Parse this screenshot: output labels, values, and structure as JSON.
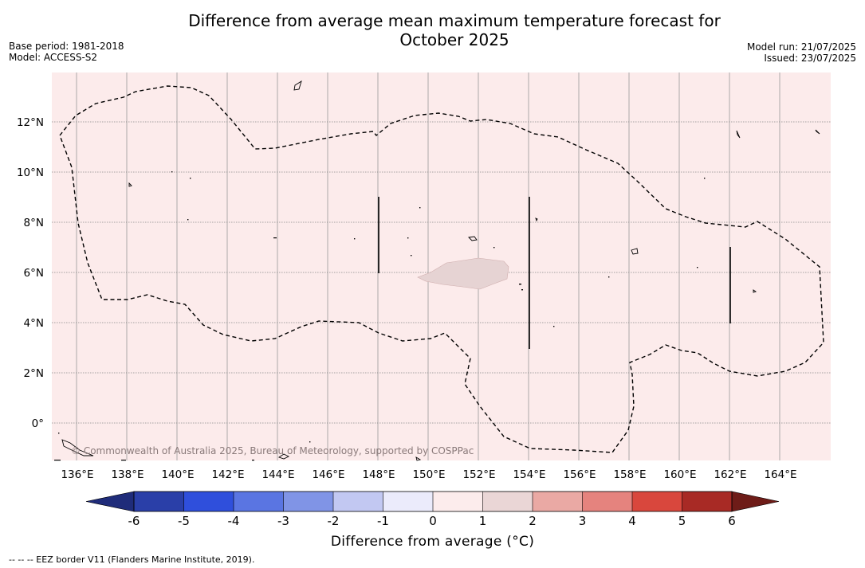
{
  "title_line1": "Difference from average mean maximum temperature forecast for",
  "title_line2": "October 2025",
  "base_period": "Base period: 1981-2018",
  "model": "Model: ACCESS-S2",
  "model_run": "Model run: 21/07/2025",
  "issued": "Issued: 23/07/2025",
  "copyright": "© Commonwealth of Australia 2025, Bureau of Meteorology, supported by COSPPac",
  "footnote": "--  --  -- EEZ border V11 (Flanders Marine Institute, 2019).",
  "colorbar": {
    "title": "Difference from average (°C)",
    "labels": [
      "-6",
      "-5",
      "-4",
      "-3",
      "-2",
      "-1",
      "0",
      "1",
      "2",
      "3",
      "4",
      "5",
      "6"
    ],
    "colors": [
      "#2a3fa8",
      "#2f4fdc",
      "#5a75e2",
      "#8094e6",
      "#c2c8f2",
      "#ebebfb",
      "#fcecec",
      "#ead6d6",
      "#eaa9a4",
      "#e5837e",
      "#d9473d",
      "#a82a25"
    ],
    "under_color": "#1f2c7a",
    "over_color": "#6e1c18"
  },
  "map": {
    "lon_labels": [
      "136°E",
      "138°E",
      "140°E",
      "142°E",
      "144°E",
      "146°E",
      "148°E",
      "150°E",
      "152°E",
      "154°E",
      "156°E",
      "158°E",
      "160°E",
      "162°E",
      "164°E"
    ],
    "lat_labels": [
      "12°N",
      "10°N",
      "8°N",
      "6°N",
      "4°N",
      "2°N",
      "0°"
    ],
    "background_category": "0 to 1",
    "patch_category": "1 to 2"
  }
}
